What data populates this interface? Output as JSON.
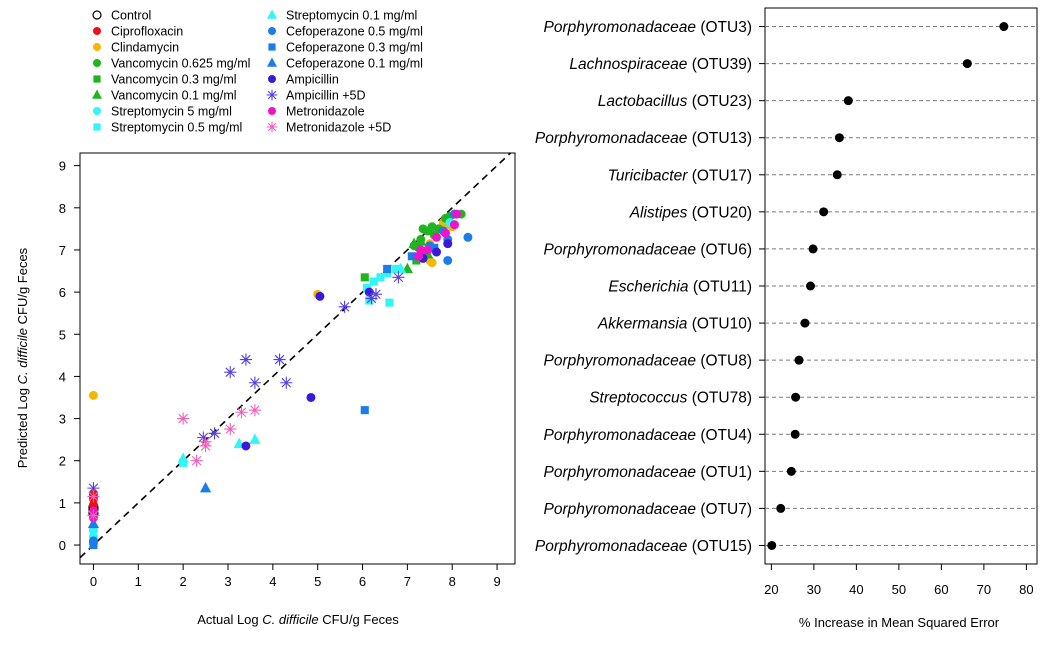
{
  "chart_data": [
    {
      "type": "scatter",
      "xlabel_pre": "Actual Log ",
      "xlabel_ital": "C. difficile",
      "xlabel_post": " CFU/g Feces",
      "ylabel_pre": "Predicted Log ",
      "ylabel_ital": "C. difficile",
      "ylabel_post": " CFU/g Feces",
      "xlim": [
        -0.3,
        9.4
      ],
      "ylim": [
        -0.45,
        9.3
      ],
      "xticks": [
        0,
        1,
        2,
        3,
        4,
        5,
        6,
        7,
        8,
        9
      ],
      "yticks": [
        0,
        1,
        2,
        3,
        4,
        5,
        6,
        7,
        8,
        9
      ],
      "reference_line": "y = x (dashed)",
      "legend": [
        {
          "label": "Control",
          "color": "#000000",
          "marker": "open-circle"
        },
        {
          "label": "Ciprofloxacin",
          "color": "#e8101a",
          "marker": "circle"
        },
        {
          "label": "Clindamycin",
          "color": "#f5b800",
          "marker": "circle"
        },
        {
          "label": "Vancomycin 0.625 mg/ml",
          "color": "#1fb51f",
          "marker": "circle"
        },
        {
          "label": "Vancomycin 0.3 mg/ml",
          "color": "#1fb51f",
          "marker": "square"
        },
        {
          "label": "Vancomycin 0.1 mg/ml",
          "color": "#1fb51f",
          "marker": "triangle"
        },
        {
          "label": "Streptomycin 5 mg/ml",
          "color": "#33f5f5",
          "marker": "circle"
        },
        {
          "label": "Streptomycin 0.5 mg/ml",
          "color": "#33f5f5",
          "marker": "square"
        },
        {
          "label": "Streptomycin 0.1 mg/ml",
          "color": "#33f5f5",
          "marker": "triangle"
        },
        {
          "label": "Cefoperazone 0.5 mg/ml",
          "color": "#1a7de8",
          "marker": "circle"
        },
        {
          "label": "Cefoperazone 0.3 mg/ml",
          "color": "#1a7de8",
          "marker": "square"
        },
        {
          "label": "Cefoperazone 0.1 mg/ml",
          "color": "#1a7de8",
          "marker": "triangle"
        },
        {
          "label": "Ampicillin",
          "color": "#3a1ad8",
          "marker": "circle"
        },
        {
          "label": "Ampicillin +5D",
          "color": "#5a3fe0",
          "marker": "star"
        },
        {
          "label": "Metronidazole",
          "color": "#f012c8",
          "marker": "circle"
        },
        {
          "label": "Metronidazole +5D",
          "color": "#f060b8",
          "marker": "star"
        }
      ],
      "series": [
        {
          "name": "Control",
          "points": [
            [
              0,
              0.9
            ],
            [
              0,
              0.85
            ],
            [
              0,
              0.75
            ]
          ]
        },
        {
          "name": "Ciprofloxacin",
          "points": [
            [
              0,
              1.2
            ],
            [
              0,
              1.1
            ],
            [
              0,
              0.95
            ]
          ]
        },
        {
          "name": "Clindamycin",
          "points": [
            [
              0,
              3.55
            ],
            [
              5.0,
              5.95
            ],
            [
              7.5,
              7.15
            ],
            [
              7.5,
              6.75
            ],
            [
              7.45,
              6.95
            ],
            [
              7.8,
              7.65
            ],
            [
              7.9,
              7.6
            ],
            [
              8.0,
              7.55
            ],
            [
              7.55,
              6.7
            ]
          ]
        },
        {
          "name": "Vancomycin 0.625 mg/ml",
          "points": [
            [
              7.15,
              7.1
            ],
            [
              7.3,
              7.25
            ],
            [
              7.35,
              7.5
            ],
            [
              7.45,
              7.45
            ],
            [
              7.55,
              7.55
            ],
            [
              7.7,
              7.5
            ],
            [
              7.85,
              7.75
            ],
            [
              7.95,
              7.8
            ],
            [
              8.05,
              7.85
            ],
            [
              8.2,
              7.85
            ],
            [
              7.25,
              7.05
            ],
            [
              7.6,
              7.35
            ],
            [
              7.4,
              6.95
            ]
          ]
        },
        {
          "name": "Vancomycin 0.3 mg/ml",
          "points": [
            [
              6.05,
              6.35
            ],
            [
              7.2,
              6.75
            ],
            [
              7.35,
              6.95
            ]
          ]
        },
        {
          "name": "Vancomycin 0.1 mg/ml",
          "points": [
            [
              7.0,
              6.55
            ],
            [
              7.15,
              7.15
            ],
            [
              7.3,
              7.2
            ],
            [
              7.45,
              6.9
            ]
          ]
        },
        {
          "name": "Streptomycin 5 mg/ml",
          "points": [
            [
              0,
              0.2
            ],
            [
              0,
              0.35
            ],
            [
              7.95,
              7.65
            ]
          ]
        },
        {
          "name": "Streptomycin 0.5 mg/ml",
          "points": [
            [
              2.0,
              1.95
            ],
            [
              6.1,
              6.1
            ],
            [
              6.25,
              6.25
            ],
            [
              6.4,
              6.35
            ],
            [
              6.55,
              6.45
            ],
            [
              6.75,
              6.55
            ],
            [
              6.15,
              5.8
            ],
            [
              6.6,
              5.75
            ]
          ]
        },
        {
          "name": "Streptomycin 0.1 mg/ml",
          "points": [
            [
              2.0,
              2.05
            ],
            [
              3.25,
              2.4
            ],
            [
              3.6,
              2.5
            ],
            [
              6.85,
              6.55
            ]
          ]
        },
        {
          "name": "Cefoperazone 0.5 mg/ml",
          "points": [
            [
              0,
              0.1
            ],
            [
              0,
              0.05
            ],
            [
              7.5,
              7.1
            ],
            [
              7.9,
              7.25
            ],
            [
              8.35,
              7.3
            ],
            [
              7.9,
              6.75
            ],
            [
              7.8,
              7.45
            ],
            [
              8.05,
              7.85
            ]
          ]
        },
        {
          "name": "Cefoperazone 0.3 mg/ml",
          "points": [
            [
              0,
              0.0
            ],
            [
              6.05,
              3.2
            ],
            [
              6.55,
              6.55
            ],
            [
              7.1,
              6.85
            ],
            [
              7.6,
              7.05
            ]
          ]
        },
        {
          "name": "Cefoperazone 0.1 mg/ml",
          "points": [
            [
              0,
              0.5
            ],
            [
              2.5,
              1.35
            ]
          ]
        },
        {
          "name": "Ampicillin",
          "points": [
            [
              3.4,
              2.35
            ],
            [
              4.85,
              3.5
            ],
            [
              5.05,
              5.9
            ],
            [
              6.15,
              6.0
            ],
            [
              7.35,
              6.8
            ],
            [
              7.65,
              6.95
            ],
            [
              7.9,
              7.15
            ]
          ]
        },
        {
          "name": "Ampicillin +5D",
          "points": [
            [
              0,
              1.35
            ],
            [
              2.45,
              2.55
            ],
            [
              2.7,
              2.65
            ],
            [
              3.05,
              4.1
            ],
            [
              3.4,
              4.4
            ],
            [
              3.6,
              3.85
            ],
            [
              4.15,
              4.4
            ],
            [
              4.3,
              3.85
            ],
            [
              5.6,
              5.65
            ],
            [
              6.2,
              5.85
            ],
            [
              6.3,
              5.95
            ],
            [
              6.8,
              6.35
            ]
          ]
        },
        {
          "name": "Metronidazole",
          "points": [
            [
              0,
              0.8
            ],
            [
              0,
              0.65
            ],
            [
              7.25,
              6.85
            ],
            [
              7.45,
              7.0
            ],
            [
              7.65,
              7.3
            ],
            [
              7.85,
              7.4
            ],
            [
              8.05,
              7.6
            ],
            [
              8.1,
              7.85
            ],
            [
              7.3,
              7.0
            ]
          ]
        },
        {
          "name": "Metronidazole +5D",
          "points": [
            [
              0,
              1.15
            ],
            [
              0,
              0.7
            ],
            [
              2.0,
              3.0
            ],
            [
              2.3,
              2.0
            ],
            [
              2.5,
              2.35
            ],
            [
              2.5,
              2.45
            ],
            [
              3.05,
              2.75
            ],
            [
              3.3,
              3.15
            ],
            [
              3.6,
              3.2
            ]
          ]
        }
      ]
    },
    {
      "type": "dot",
      "xlabel": "% Increase in Mean Squared Error",
      "xlim": [
        18.5,
        82.5
      ],
      "xticks": [
        20,
        30,
        40,
        50,
        60,
        70,
        80
      ],
      "categories": [
        {
          "ital": "Porphyromonadaceae",
          "otu": " (OTU3)",
          "value": 74.7
        },
        {
          "ital": "Lachnospiraceae",
          "otu": " (OTU39)",
          "value": 66.1
        },
        {
          "ital": "Lactobacillus",
          "otu": " (OTU23)",
          "value": 38.1
        },
        {
          "ital": "Porphyromonadaceae",
          "otu": " (OTU13)",
          "value": 36.0
        },
        {
          "ital": "Turicibacter",
          "otu": " (OTU17)",
          "value": 35.5
        },
        {
          "ital": "Alistipes",
          "otu": " (OTU20)",
          "value": 32.3
        },
        {
          "ital": "Porphyromonadaceae",
          "otu": " (OTU6)",
          "value": 29.8
        },
        {
          "ital": "Escherichia",
          "otu": " (OTU11)",
          "value": 29.2
        },
        {
          "ital": "Akkermansia",
          "otu": " (OTU10)",
          "value": 27.9
        },
        {
          "ital": "Porphyromonadaceae",
          "otu": " (OTU8)",
          "value": 26.5
        },
        {
          "ital": "Streptococcus",
          "otu": " (OTU78)",
          "value": 25.7
        },
        {
          "ital": "Porphyromonadaceae",
          "otu": " (OTU4)",
          "value": 25.6
        },
        {
          "ital": "Porphyromonadaceae",
          "otu": " (OTU1)",
          "value": 24.7
        },
        {
          "ital": "Porphyromonadaceae",
          "otu": " (OTU7)",
          "value": 22.2
        },
        {
          "ital": "Porphyromonadaceae",
          "otu": " (OTU15)",
          "value": 20.1
        }
      ]
    }
  ]
}
